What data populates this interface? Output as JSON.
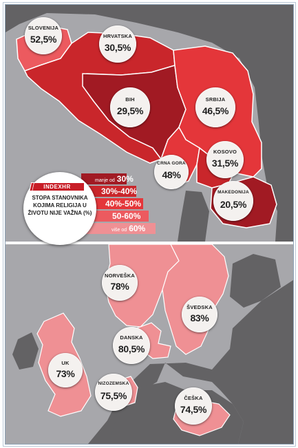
{
  "colors": {
    "sea": "#a7a7ab",
    "land_other": "#636264",
    "border": "#ffffff",
    "band_1": "#a11a23",
    "band_2": "#c9262b",
    "band_3": "#e4363a",
    "band_4": "#ec5a5f",
    "band_5": "#ef9094"
  },
  "logo": {
    "text": "INDEXHR"
  },
  "legend": {
    "title": "STOPA STANOVNIKA KOJIMA RELIGIJA U ŽIVOTU NIJE VAŽNA (%)",
    "rows": [
      {
        "prefix": "manje od",
        "label": "30%",
        "color": "#a11a23"
      },
      {
        "prefix": "",
        "label": "30%-40%",
        "color": "#c9262b"
      },
      {
        "prefix": "",
        "label": "40%-50%",
        "color": "#e4363a"
      },
      {
        "prefix": "",
        "label": "50-60%",
        "color": "#ec5a5f"
      },
      {
        "prefix": "više od",
        "label": "60%",
        "color": "#ef9094"
      }
    ]
  },
  "countries": [
    {
      "id": "slovenija",
      "name": "SLOVENIJA",
      "value": "52,5%",
      "numeric": 52.5
    },
    {
      "id": "hrvatska",
      "name": "HRVATSKA",
      "value": "30,5%",
      "numeric": 30.5
    },
    {
      "id": "bih",
      "name": "BIH",
      "value": "29,5%",
      "numeric": 29.5
    },
    {
      "id": "srbija",
      "name": "SRBIJA",
      "value": "46,5%",
      "numeric": 46.5
    },
    {
      "id": "crna-gora",
      "name": "CRNA GORA",
      "value": "48%",
      "numeric": 48
    },
    {
      "id": "kosovo",
      "name": "KOSOVO",
      "value": "31,5%",
      "numeric": 31.5
    },
    {
      "id": "makedonija",
      "name": "MAKEDONIJA",
      "value": "20,5%",
      "numeric": 20.5
    },
    {
      "id": "norveska",
      "name": "NORVEŠKA",
      "value": "78%",
      "numeric": 78
    },
    {
      "id": "svedska",
      "name": "ŠVEDSKA",
      "value": "83%",
      "numeric": 83
    },
    {
      "id": "danska",
      "name": "DANSKA",
      "value": "80,5%",
      "numeric": 80.5
    },
    {
      "id": "uk",
      "name": "UK",
      "value": "73%",
      "numeric": 73
    },
    {
      "id": "nizozemska",
      "name": "NIZOZEMSKA",
      "value": "75,5%",
      "numeric": 75.5
    },
    {
      "id": "ceska",
      "name": "ČEŠKA",
      "value": "74,5%",
      "numeric": 74.5
    }
  ]
}
